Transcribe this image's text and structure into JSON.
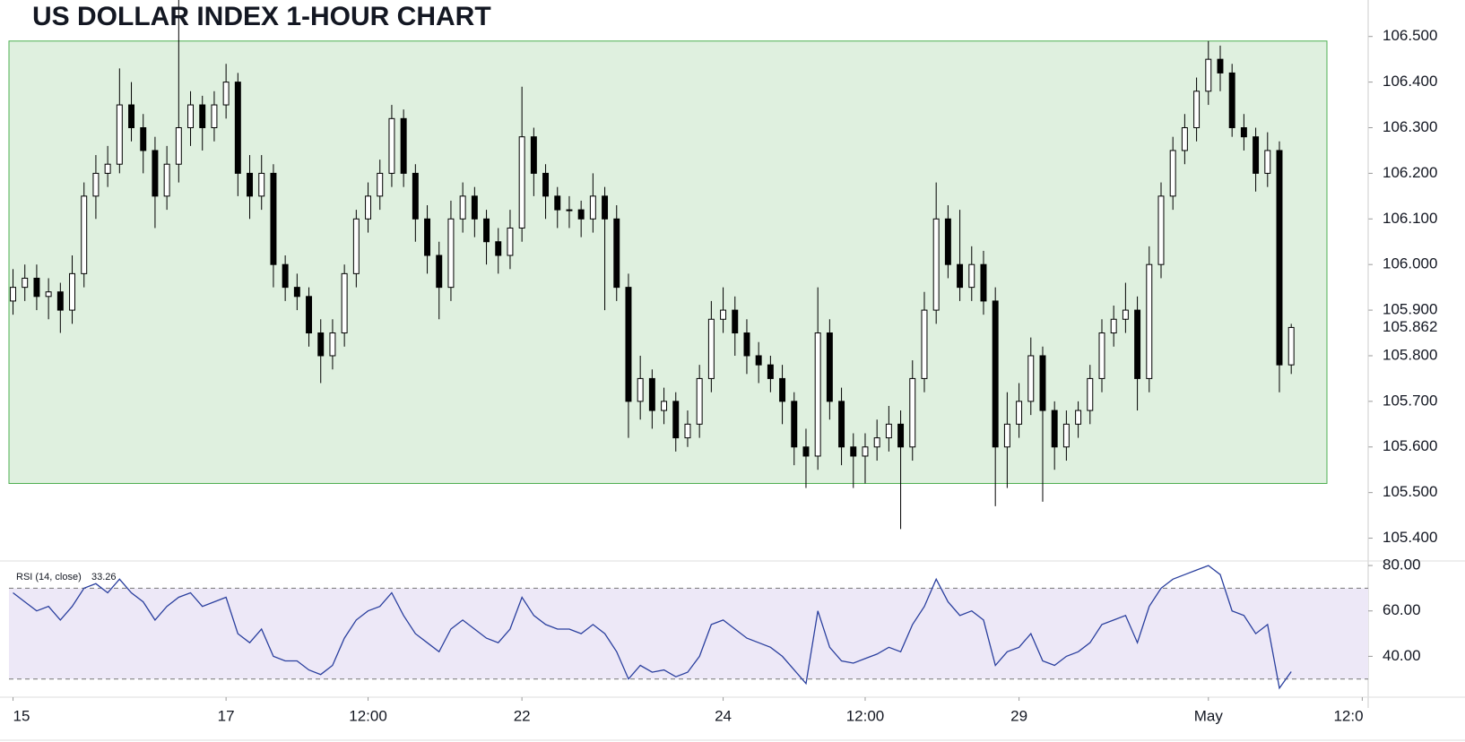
{
  "chart_data": {
    "type": "candlestick",
    "title": "US DOLLAR INDEX 1-HOUR CHART",
    "ohlc": [
      [
        105.92,
        105.99,
        105.89,
        105.95
      ],
      [
        105.95,
        106.0,
        105.92,
        105.97
      ],
      [
        105.97,
        106.0,
        105.9,
        105.93
      ],
      [
        105.93,
        105.97,
        105.88,
        105.94
      ],
      [
        105.94,
        105.96,
        105.85,
        105.9
      ],
      [
        105.9,
        106.02,
        105.87,
        105.98
      ],
      [
        105.98,
        106.18,
        105.95,
        106.15
      ],
      [
        106.15,
        106.24,
        106.1,
        106.2
      ],
      [
        106.2,
        106.26,
        106.17,
        106.22
      ],
      [
        106.22,
        106.43,
        106.2,
        106.35
      ],
      [
        106.35,
        106.4,
        106.27,
        106.3
      ],
      [
        106.3,
        106.33,
        106.2,
        106.25
      ],
      [
        106.25,
        106.28,
        106.08,
        106.15
      ],
      [
        106.15,
        106.26,
        106.12,
        106.22
      ],
      [
        106.22,
        106.6,
        106.18,
        106.3
      ],
      [
        106.3,
        106.38,
        106.26,
        106.35
      ],
      [
        106.35,
        106.37,
        106.25,
        106.3
      ],
      [
        106.3,
        106.38,
        106.27,
        106.35
      ],
      [
        106.35,
        106.44,
        106.32,
        106.4
      ],
      [
        106.4,
        106.42,
        106.15,
        106.2
      ],
      [
        106.2,
        106.24,
        106.1,
        106.15
      ],
      [
        106.15,
        106.24,
        106.12,
        106.2
      ],
      [
        106.2,
        106.22,
        105.95,
        106.0
      ],
      [
        106.0,
        106.02,
        105.92,
        105.95
      ],
      [
        105.95,
        105.98,
        105.9,
        105.93
      ],
      [
        105.93,
        105.95,
        105.82,
        105.85
      ],
      [
        105.85,
        105.88,
        105.74,
        105.8
      ],
      [
        105.8,
        105.88,
        105.77,
        105.85
      ],
      [
        105.85,
        106.0,
        105.82,
        105.98
      ],
      [
        105.98,
        106.12,
        105.95,
        106.1
      ],
      [
        106.1,
        106.18,
        106.07,
        106.15
      ],
      [
        106.15,
        106.23,
        106.12,
        106.2
      ],
      [
        106.2,
        106.35,
        106.17,
        106.32
      ],
      [
        106.32,
        106.34,
        106.17,
        106.2
      ],
      [
        106.2,
        106.22,
        106.05,
        106.1
      ],
      [
        106.1,
        106.13,
        105.98,
        106.02
      ],
      [
        106.02,
        106.05,
        105.88,
        105.95
      ],
      [
        105.95,
        106.14,
        105.92,
        106.1
      ],
      [
        106.1,
        106.18,
        106.07,
        106.15
      ],
      [
        106.15,
        106.17,
        106.06,
        106.1
      ],
      [
        106.1,
        106.12,
        106.0,
        106.05
      ],
      [
        106.05,
        106.08,
        105.98,
        106.02
      ],
      [
        106.02,
        106.12,
        105.99,
        106.08
      ],
      [
        106.08,
        106.39,
        106.05,
        106.28
      ],
      [
        106.28,
        106.3,
        106.15,
        106.2
      ],
      [
        106.2,
        106.22,
        106.1,
        106.15
      ],
      [
        106.15,
        106.17,
        106.08,
        106.12
      ],
      [
        106.12,
        106.15,
        106.08,
        106.12
      ],
      [
        106.12,
        106.14,
        106.06,
        106.1
      ],
      [
        106.1,
        106.2,
        106.07,
        106.15
      ],
      [
        106.15,
        106.17,
        105.9,
        106.1
      ],
      [
        106.1,
        106.13,
        105.92,
        105.95
      ],
      [
        105.95,
        105.98,
        105.62,
        105.7
      ],
      [
        105.7,
        105.8,
        105.66,
        105.75
      ],
      [
        105.75,
        105.77,
        105.64,
        105.68
      ],
      [
        105.68,
        105.73,
        105.65,
        105.7
      ],
      [
        105.7,
        105.72,
        105.59,
        105.62
      ],
      [
        105.62,
        105.68,
        105.6,
        105.65
      ],
      [
        105.65,
        105.78,
        105.62,
        105.75
      ],
      [
        105.75,
        105.92,
        105.72,
        105.88
      ],
      [
        105.88,
        105.95,
        105.85,
        105.9
      ],
      [
        105.9,
        105.93,
        105.8,
        105.85
      ],
      [
        105.85,
        105.88,
        105.76,
        105.8
      ],
      [
        105.8,
        105.83,
        105.74,
        105.78
      ],
      [
        105.78,
        105.8,
        105.72,
        105.75
      ],
      [
        105.75,
        105.78,
        105.65,
        105.7
      ],
      [
        105.7,
        105.72,
        105.56,
        105.6
      ],
      [
        105.6,
        105.64,
        105.51,
        105.58
      ],
      [
        105.58,
        105.95,
        105.55,
        105.85
      ],
      [
        105.85,
        105.88,
        105.66,
        105.7
      ],
      [
        105.7,
        105.73,
        105.56,
        105.6
      ],
      [
        105.6,
        105.63,
        105.51,
        105.58
      ],
      [
        105.58,
        105.63,
        105.52,
        105.6
      ],
      [
        105.6,
        105.66,
        105.57,
        105.62
      ],
      [
        105.62,
        105.69,
        105.59,
        105.65
      ],
      [
        105.65,
        105.68,
        105.42,
        105.6
      ],
      [
        105.6,
        105.79,
        105.57,
        105.75
      ],
      [
        105.75,
        105.94,
        105.72,
        105.9
      ],
      [
        105.9,
        106.18,
        105.87,
        106.1
      ],
      [
        106.1,
        106.13,
        105.97,
        106.0
      ],
      [
        106.0,
        106.12,
        105.92,
        105.95
      ],
      [
        105.95,
        106.04,
        105.92,
        106.0
      ],
      [
        106.0,
        106.03,
        105.89,
        105.92
      ],
      [
        105.92,
        105.95,
        105.47,
        105.6
      ],
      [
        105.6,
        105.72,
        105.51,
        105.65
      ],
      [
        105.65,
        105.74,
        105.62,
        105.7
      ],
      [
        105.7,
        105.84,
        105.67,
        105.8
      ],
      [
        105.8,
        105.82,
        105.48,
        105.68
      ],
      [
        105.68,
        105.7,
        105.55,
        105.6
      ],
      [
        105.6,
        105.68,
        105.57,
        105.65
      ],
      [
        105.65,
        105.7,
        105.62,
        105.68
      ],
      [
        105.68,
        105.78,
        105.65,
        105.75
      ],
      [
        105.75,
        105.88,
        105.72,
        105.85
      ],
      [
        105.85,
        105.91,
        105.82,
        105.88
      ],
      [
        105.88,
        105.96,
        105.85,
        105.9
      ],
      [
        105.9,
        105.93,
        105.68,
        105.75
      ],
      [
        105.75,
        106.04,
        105.72,
        106.0
      ],
      [
        106.0,
        106.18,
        105.97,
        106.15
      ],
      [
        106.15,
        106.28,
        106.12,
        106.25
      ],
      [
        106.25,
        106.33,
        106.22,
        106.3
      ],
      [
        106.3,
        106.41,
        106.27,
        106.38
      ],
      [
        106.38,
        106.49,
        106.35,
        106.45
      ],
      [
        106.45,
        106.48,
        106.38,
        106.42
      ],
      [
        106.42,
        106.44,
        106.28,
        106.3
      ],
      [
        106.3,
        106.33,
        106.25,
        106.28
      ],
      [
        106.28,
        106.3,
        106.16,
        106.2
      ],
      [
        106.2,
        106.29,
        106.17,
        106.25
      ],
      [
        106.25,
        106.27,
        105.72,
        105.78
      ],
      [
        105.78,
        105.87,
        105.76,
        105.862
      ]
    ],
    "up_color": "#ffffff",
    "down_color": "#000000",
    "range_box": {
      "top": 106.49,
      "bottom": 105.52,
      "color": "#dff0df"
    },
    "last_price": 105.862,
    "ylim": [
      105.35,
      106.58
    ],
    "yticks": [
      {
        "value": 105.4,
        "label": "105.400"
      },
      {
        "value": 105.5,
        "label": "105.500"
      },
      {
        "value": 105.6,
        "label": "105.600"
      },
      {
        "value": 105.7,
        "label": "105.700"
      },
      {
        "value": 105.8,
        "label": "105.800"
      },
      {
        "value": 105.9,
        "label": "105.900"
      },
      {
        "value": 106.0,
        "label": "106.000"
      },
      {
        "value": 106.1,
        "label": "106.100"
      },
      {
        "value": 106.2,
        "label": "106.200"
      },
      {
        "value": 106.3,
        "label": "106.300"
      },
      {
        "value": 106.4,
        "label": "106.400"
      },
      {
        "value": 106.5,
        "label": "106.500"
      }
    ],
    "xlim": [
      -1.1,
      114.5
    ],
    "xticks": [
      {
        "value": 0,
        "label": "15"
      },
      {
        "value": 18,
        "label": "17"
      },
      {
        "value": 30,
        "label": "12:00"
      },
      {
        "value": 43,
        "label": "22"
      },
      {
        "value": 60,
        "label": "24"
      },
      {
        "value": 72,
        "label": "12:00"
      },
      {
        "value": 85,
        "label": "29"
      },
      {
        "value": 101,
        "label": "May"
      },
      {
        "value": 114,
        "label": "12:0"
      }
    ],
    "rsi": {
      "name": "RSI (14, close)",
      "color": "#2a3f9e",
      "values": [
        68,
        64,
        60,
        62,
        56,
        62,
        70,
        72,
        68,
        74,
        68,
        64,
        56,
        62,
        66,
        68,
        62,
        64,
        66,
        50,
        46,
        52,
        40,
        38,
        38,
        34,
        32,
        36,
        48,
        56,
        60,
        62,
        68,
        58,
        50,
        46,
        42,
        52,
        56,
        52,
        48,
        46,
        52,
        66,
        58,
        54,
        52,
        52,
        50,
        54,
        50,
        42,
        30,
        36,
        33,
        34,
        31,
        33,
        40,
        54,
        56,
        52,
        48,
        46,
        44,
        40,
        34,
        28,
        60,
        44,
        38,
        37,
        39,
        41,
        44,
        42,
        54,
        62,
        74,
        64,
        58,
        60,
        56,
        36,
        42,
        44,
        50,
        38,
        36,
        40,
        42,
        46,
        54,
        56,
        58,
        46,
        62,
        70,
        74,
        76,
        78,
        80,
        76,
        60,
        58,
        50,
        54,
        26,
        33.26
      ],
      "bands": [
        30,
        70
      ],
      "band_color": "#ede8f7",
      "ylim": [
        22,
        82
      ],
      "yticks": [
        {
          "value": 40,
          "label": "40.00"
        },
        {
          "value": 60,
          "label": "60.00"
        },
        {
          "value": 80,
          "label": "80.00"
        }
      ]
    }
  }
}
